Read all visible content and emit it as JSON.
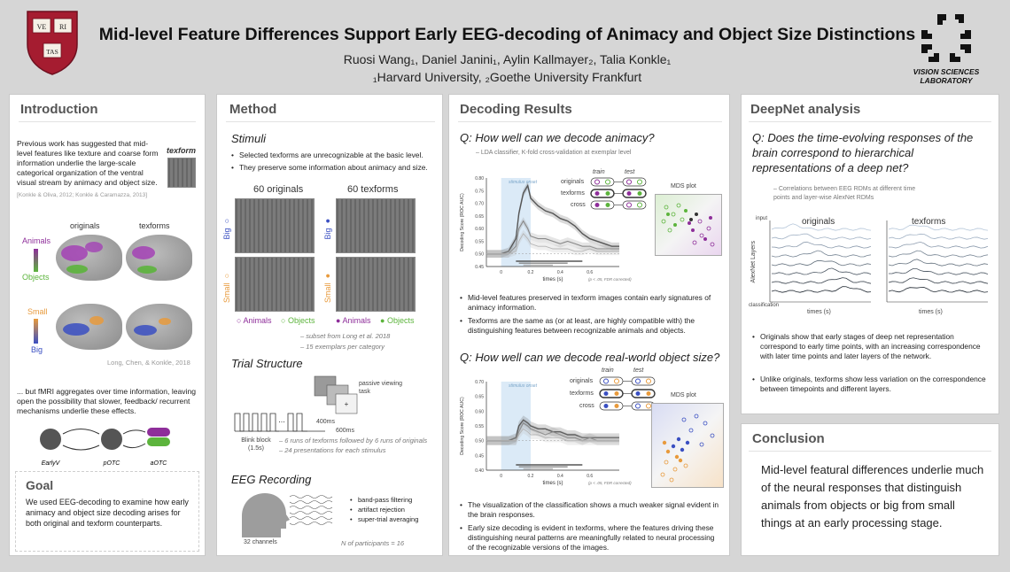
{
  "header": {
    "title": "Mid-level Feature Differences Support Early EEG-decoding of Animacy and Object Size Distinctions",
    "authors": "Ruosi Wang₁, Daniel Janini₁, Aylin Kallmayer₂, Talia Konkle₁",
    "affiliations": "₁Harvard University, ₂Goethe University Frankfurt",
    "shield_text": [
      "VE",
      "RI",
      "TAS"
    ],
    "lab_name": "VISION SCIENCES LABORATORY"
  },
  "intro": {
    "title": "Introduction",
    "para1": "Previous work has suggested that mid-level features like texture and coarse form information underlie the large-scale categorical organization of the ventral visual stream by animacy and object size.",
    "cite1": "[Konkle & Oliva, 2012; Konkle & Caramazza, 2013]",
    "texform_label": "texform",
    "col_originals": "originals",
    "col_texforms": "texforms",
    "animals": "Animals",
    "objects": "Objects",
    "small": "Small",
    "big": "Big",
    "cite2": "Long, Chen, & Konkle, 2018",
    "para2": "... but fMRI aggregates over time information, leaving open the possibility that slower, feedback/ recurrent mechanisms underlie these effects.",
    "nodes": [
      "EarlyV",
      "pOTC",
      "aOTC"
    ]
  },
  "goal": {
    "title": "Goal",
    "text": "We used EEG-decoding to examine how early animacy and object size decoding arises for both original and texform counterparts."
  },
  "method": {
    "title": "Method",
    "stimuli_h": "Stimuli",
    "stim_b1": "Selected texforms are unrecognizable at the basic level.",
    "stim_b2": "They preserve some information about animacy and size.",
    "originals_label": "60 originals",
    "texforms_label": "60 texforms",
    "big": "Big",
    "small": "Small",
    "animals": "Animals",
    "objects": "Objects",
    "note1": "– subset from Long et al. 2018",
    "note2": "– 15 exemplars per category",
    "trial_h": "Trial Structure",
    "passive": "passive viewing task",
    "t400": "400ms",
    "t600": "600ms",
    "ellipsis": "...",
    "blink": "Blink block (1.5s)",
    "trial_note1": "– 6 runs of texforms followed by 6 runs of originals",
    "trial_note2": "– 24 presentations for each stimulus",
    "eeg_h": "EEG Recording",
    "eeg_b1": "band-pass filtering",
    "eeg_b2": "artifact rejection",
    "eeg_b3": "super-trial averaging",
    "channels": "32 channels",
    "participants": "N of participants = 16"
  },
  "decoding": {
    "title": "Decoding Results",
    "q1": "Q: How well can we decode animacy?",
    "q1_sub": "– LDA classifier, K-fold cross-validation at exemplar level",
    "train": "train",
    "test": "test",
    "rows": [
      "originals",
      "texforms",
      "cross"
    ],
    "stim_onset": "stimulus onset",
    "ylabel": "Decoding Score (ROC AUC)",
    "xlabel": "times (s)",
    "fdr": "(p < .05, FDR corrected)",
    "mds": "MDS plot",
    "a_b1": "Mid-level features preserved in texform images contain early signatures of animacy information.",
    "a_b2": "Texforms are the same as (or at least, are highly compatible with) the distinguishing features between recognizable animals and objects.",
    "q2": "Q: How well can we decode real-world object size?",
    "s_b1": "The visualization of the classification shows a much weaker signal evident in the brain responses.",
    "s_b2": "Early size decoding is evident in texforms, where the features driving these distinguishing neural patterns are meaningfully related to neural processing of the recognizable versions of the images."
  },
  "chart_data": [
    {
      "type": "line",
      "title": "animacy decoding",
      "xlabel": "times (s)",
      "ylabel": "Decoding Score (ROC AUC)",
      "xlim": [
        -0.1,
        0.8
      ],
      "ylim": [
        0.45,
        0.8
      ],
      "xticks": [
        "0",
        "0.2",
        "0.4",
        "0.6"
      ],
      "yticks": [
        "0.45",
        "0.50",
        "0.55",
        "0.60",
        "0.65",
        "0.70",
        "0.75",
        "0.80"
      ],
      "x": [
        -0.1,
        -0.05,
        0.0,
        0.05,
        0.1,
        0.12,
        0.15,
        0.18,
        0.2,
        0.25,
        0.3,
        0.35,
        0.4,
        0.45,
        0.5,
        0.55,
        0.6,
        0.65,
        0.7,
        0.75,
        0.8
      ],
      "series": [
        {
          "name": "originals",
          "values": [
            0.5,
            0.5,
            0.5,
            0.51,
            0.56,
            0.66,
            0.74,
            0.77,
            0.72,
            0.69,
            0.67,
            0.66,
            0.64,
            0.63,
            0.61,
            0.58,
            0.56,
            0.55,
            0.54,
            0.53,
            0.53
          ]
        },
        {
          "name": "texforms",
          "values": [
            0.5,
            0.5,
            0.5,
            0.5,
            0.53,
            0.6,
            0.63,
            0.6,
            0.57,
            0.56,
            0.56,
            0.55,
            0.54,
            0.55,
            0.54,
            0.53,
            0.53,
            0.52,
            0.52,
            0.52,
            0.52
          ]
        },
        {
          "name": "cross",
          "values": [
            0.5,
            0.5,
            0.5,
            0.5,
            0.51,
            0.55,
            0.58,
            0.56,
            0.54,
            0.53,
            0.53,
            0.52,
            0.52,
            0.52,
            0.51,
            0.51,
            0.52,
            0.51,
            0.51,
            0.51,
            0.51
          ]
        }
      ]
    },
    {
      "type": "line",
      "title": "size decoding",
      "xlabel": "times (s)",
      "ylabel": "Decoding Score (ROC AUC)",
      "xlim": [
        -0.1,
        0.8
      ],
      "ylim": [
        0.4,
        0.7
      ],
      "xticks": [
        "0",
        "0.2",
        "0.4",
        "0.6"
      ],
      "yticks": [
        "0.40",
        "0.45",
        "0.50",
        "0.55",
        "0.60",
        "0.65",
        "0.70"
      ],
      "x": [
        -0.1,
        -0.05,
        0.0,
        0.05,
        0.1,
        0.12,
        0.15,
        0.18,
        0.2,
        0.25,
        0.3,
        0.35,
        0.4,
        0.45,
        0.5,
        0.55,
        0.6,
        0.65,
        0.7,
        0.75,
        0.8
      ],
      "series": [
        {
          "name": "originals",
          "values": [
            0.5,
            0.5,
            0.5,
            0.5,
            0.51,
            0.55,
            0.57,
            0.56,
            0.55,
            0.54,
            0.54,
            0.53,
            0.53,
            0.52,
            0.52,
            0.51,
            0.51,
            0.51,
            0.51,
            0.51,
            0.51
          ]
        },
        {
          "name": "texforms",
          "values": [
            0.5,
            0.5,
            0.5,
            0.5,
            0.5,
            0.53,
            0.56,
            0.55,
            0.54,
            0.53,
            0.52,
            0.53,
            0.52,
            0.51,
            0.51,
            0.5,
            0.51,
            0.5,
            0.5,
            0.5,
            0.5
          ]
        },
        {
          "name": "cross",
          "values": [
            0.5,
            0.5,
            0.5,
            0.5,
            0.5,
            0.52,
            0.54,
            0.53,
            0.52,
            0.52,
            0.51,
            0.51,
            0.51,
            0.5,
            0.5,
            0.5,
            0.5,
            0.5,
            0.5,
            0.5,
            0.5
          ]
        }
      ]
    }
  ],
  "deepnet": {
    "title": "DeepNet analysis",
    "q": "Q: Does the time-evolving responses of the brain correspond to hierarchical representations of a deep net?",
    "sub": "– Correlations between EEG RDMs at different time points and layer-wise AlexNet RDMs",
    "originals": "originals",
    "texforms": "texforms",
    "input": "input",
    "classification": "classification",
    "layers": "AlexNet Layers",
    "xlabel": "times (s)",
    "b1": "Originals show that early stages of deep net representation correspond to early time points, with an increasing correspondence with later time points and later layers of the network.",
    "b2": "Unlike originals, texforms show less variation on the correspondence between timepoints and different layers."
  },
  "conclusion": {
    "title": "Conclusion",
    "text": "Mid-level featural differences underlie much of the neural responses that distinguish animals from objects or big from small things at an early processing stage."
  },
  "colors": {
    "originals": "#555555",
    "texforms": "#888888",
    "cross": "#b5b5b5",
    "animals": "#8e2e9a",
    "objects": "#5cb43c",
    "small": "#e89a3c",
    "big": "#3a4fc2",
    "harvard": "#a51c30"
  }
}
